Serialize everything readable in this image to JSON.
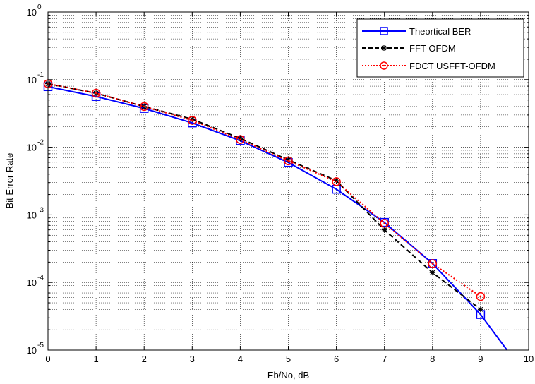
{
  "chart_data": {
    "type": "line",
    "title": "",
    "xlabel": "Eb/No, dB",
    "ylabel": "Bit Error Rate",
    "xlim": [
      0,
      10
    ],
    "ylim": [
      1e-05,
      1
    ],
    "yscale": "log",
    "grid": true,
    "legend_position": "top-right",
    "x_ticks": [
      "0",
      "1",
      "2",
      "3",
      "4",
      "5",
      "6",
      "7",
      "8",
      "9",
      "10"
    ],
    "y_ticks": [
      {
        "base": "10",
        "exp": "0",
        "value": 1
      },
      {
        "base": "10",
        "exp": "-1",
        "value": 0.1
      },
      {
        "base": "10",
        "exp": "-2",
        "value": 0.01
      },
      {
        "base": "10",
        "exp": "-3",
        "value": 0.001
      },
      {
        "base": "10",
        "exp": "-4",
        "value": 0.0001
      },
      {
        "base": "10",
        "exp": "-5",
        "value": 1e-05
      }
    ],
    "series": [
      {
        "name": "Theortical BER",
        "color": "#0000ff",
        "line_style": "solid",
        "marker": "square",
        "x": [
          0,
          1,
          2,
          3,
          4,
          5,
          6,
          7,
          8,
          9,
          9.55
        ],
        "y": [
          0.0787,
          0.0563,
          0.0375,
          0.0229,
          0.0125,
          0.00595,
          0.00239,
          0.000773,
          0.000191,
          3.36e-05,
          1e-05
        ],
        "marker_x": [
          0,
          1,
          2,
          3,
          4,
          5,
          6,
          7,
          8,
          9
        ]
      },
      {
        "name": "FFT-OFDM",
        "color": "#000000",
        "line_style": "dashed",
        "marker": "asterisk",
        "x": [
          0,
          1,
          2,
          3,
          4,
          5,
          6,
          7,
          8,
          9
        ],
        "y": [
          0.087,
          0.063,
          0.04,
          0.026,
          0.0135,
          0.0065,
          0.0032,
          0.0006,
          0.00014,
          4e-05
        ]
      },
      {
        "name": "FDCT USFFT-OFDM",
        "color": "#ff0000",
        "line_style": "dotted",
        "marker": "circle",
        "x": [
          0,
          1,
          2,
          3,
          4,
          5,
          6,
          7,
          8,
          9
        ],
        "y": [
          0.087,
          0.063,
          0.04,
          0.025,
          0.013,
          0.0063,
          0.0031,
          0.00075,
          0.00019,
          6.2e-05
        ]
      }
    ]
  }
}
